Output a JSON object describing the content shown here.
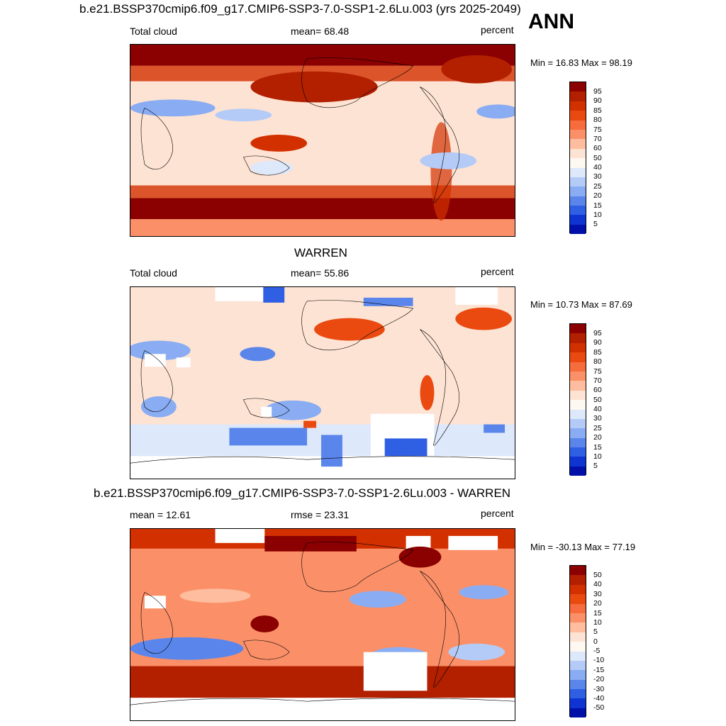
{
  "season": "ANN",
  "panels": [
    {
      "title": "b.e21.BSSP370cmip6.f09_g17.CMIP6-SSP3-7.0-SSP1-2.6Lu.003 (yrs 2025-2049)",
      "left_label": "Total cloud",
      "center_label": "mean=  68.48",
      "units": "percent",
      "minmax": "Min =  16.83 Max =  98.19",
      "colorbar_labels": [
        "95",
        "90",
        "85",
        "80",
        "75",
        "70",
        "60",
        "50",
        "40",
        "30",
        "25",
        "20",
        "15",
        "10",
        "5"
      ]
    },
    {
      "title": "WARREN",
      "left_label": "Total cloud",
      "center_label": "mean=  55.86",
      "units": "percent",
      "minmax": "Min =  10.73 Max =  87.69",
      "colorbar_labels": [
        "95",
        "90",
        "85",
        "80",
        "75",
        "70",
        "60",
        "50",
        "40",
        "30",
        "25",
        "20",
        "15",
        "10",
        "5"
      ]
    },
    {
      "title": "b.e21.BSSP370cmip6.f09_g17.CMIP6-SSP3-7.0-SSP1-2.6Lu.003 - WARREN",
      "left_label": "mean =  12.61",
      "center_label": "rmse =  23.31",
      "units": "percent",
      "minmax": "Min = -30.13 Max =  77.19",
      "colorbar_labels": [
        "50",
        "40",
        "30",
        "20",
        "15",
        "10",
        "5",
        "0",
        "-5",
        "-10",
        "-15",
        "-20",
        "-30",
        "-40",
        "-50"
      ]
    }
  ],
  "colors": {
    "colorbar": [
      "#8b0000",
      "#b22000",
      "#d33000",
      "#ea4a10",
      "#f66c3c",
      "#fb9068",
      "#fdbd9e",
      "#fde3d3",
      "#fdf8f0",
      "#dde8fb",
      "#b4cbf7",
      "#89acf2",
      "#5a86ec",
      "#2f5fe3",
      "#0f34d2",
      "#0010a8"
    ],
    "land_outline": "#000000",
    "missing": "#ffffff"
  }
}
